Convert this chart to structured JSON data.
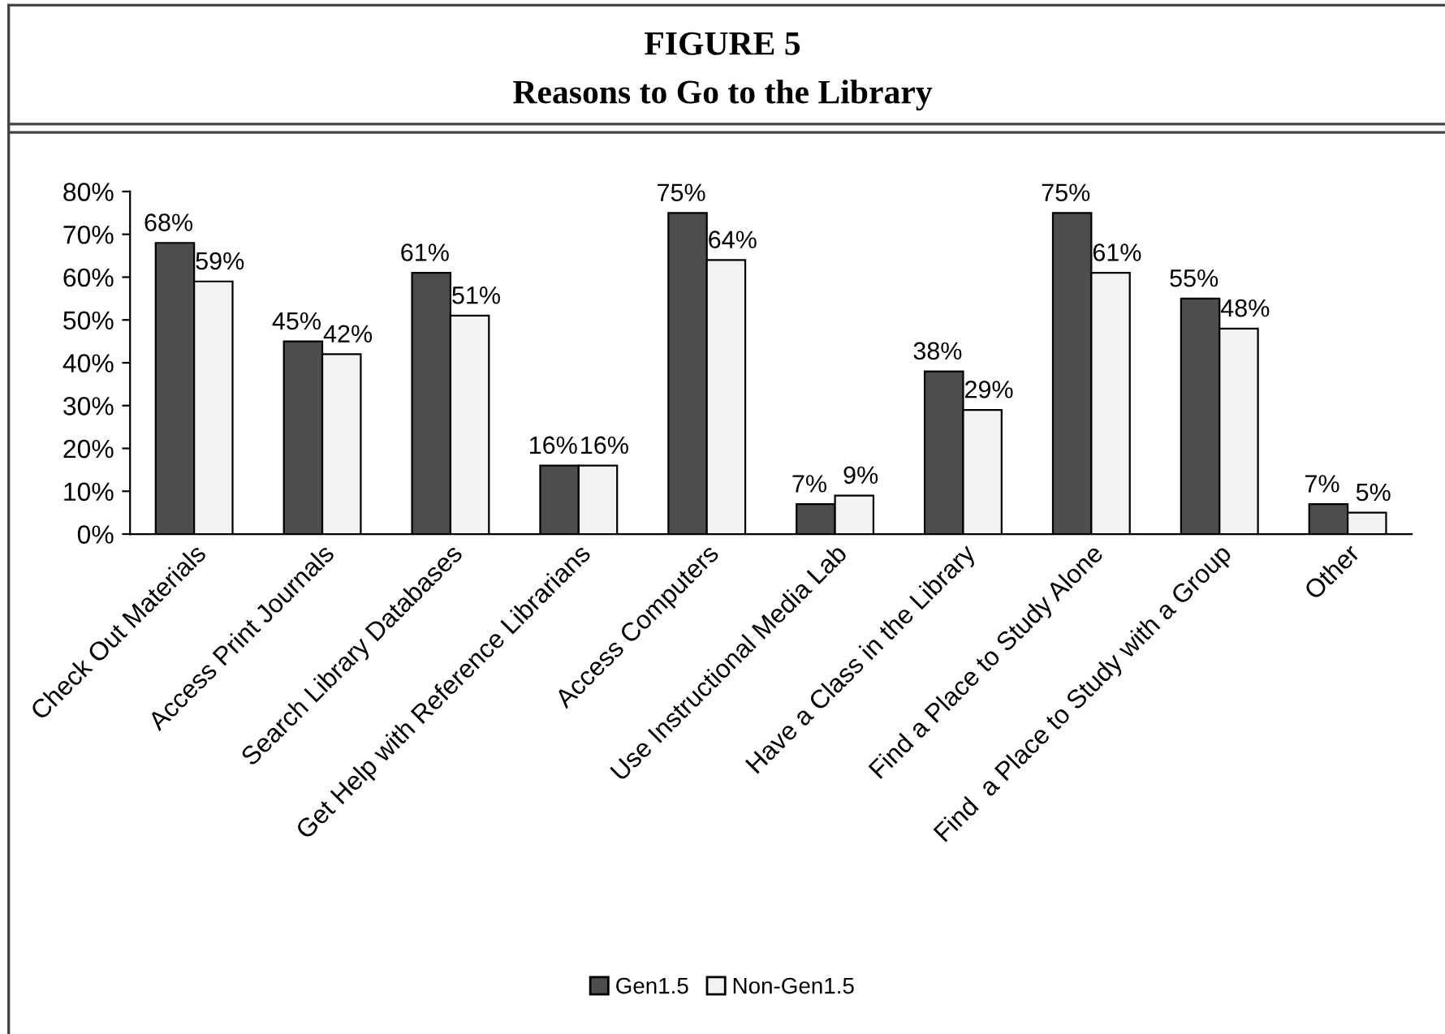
{
  "chart_data": {
    "type": "bar",
    "title": "FIGURE 5",
    "subtitle": "Reasons to Go to the Library",
    "categories": [
      "Check Out Materials",
      "Access Print Journals",
      "Search Library Databases",
      "Get Help with Reference Librarians",
      "Access Computers",
      "Use Instructional Media Lab",
      "Have a Class in the Library",
      "Find a Place to Study Alone",
      "Find  a Place to Study with a Group",
      "Other"
    ],
    "series": [
      {
        "name": "Gen1.5",
        "color": "#4d4d4d",
        "values": [
          68,
          45,
          61,
          16,
          75,
          7,
          38,
          75,
          55,
          7
        ],
        "value_labels": [
          "68%",
          "45%",
          "61%",
          "16%",
          "75%",
          "7%",
          "38%",
          "75%",
          "55%",
          "7%"
        ]
      },
      {
        "name": "Non-Gen1.5",
        "color": "#f2f2f2",
        "values": [
          59,
          42,
          51,
          16,
          64,
          9,
          29,
          61,
          48,
          5
        ],
        "value_labels": [
          "59%",
          "42%",
          "51%",
          "16%",
          "64%",
          "9%",
          "29%",
          "61%",
          "48%",
          "5%"
        ]
      }
    ],
    "ylim": [
      0,
      80
    ],
    "yticks": [
      {
        "value": 0,
        "label": "0%"
      },
      {
        "value": 10,
        "label": "10%"
      },
      {
        "value": 20,
        "label": "20%"
      },
      {
        "value": 30,
        "label": "30%"
      },
      {
        "value": 40,
        "label": "40%"
      },
      {
        "value": 50,
        "label": "50%"
      },
      {
        "value": 60,
        "label": "60%"
      },
      {
        "value": 70,
        "label": "70%"
      },
      {
        "value": 80,
        "label": "80%"
      }
    ],
    "grid": false,
    "legend": "bottom"
  }
}
